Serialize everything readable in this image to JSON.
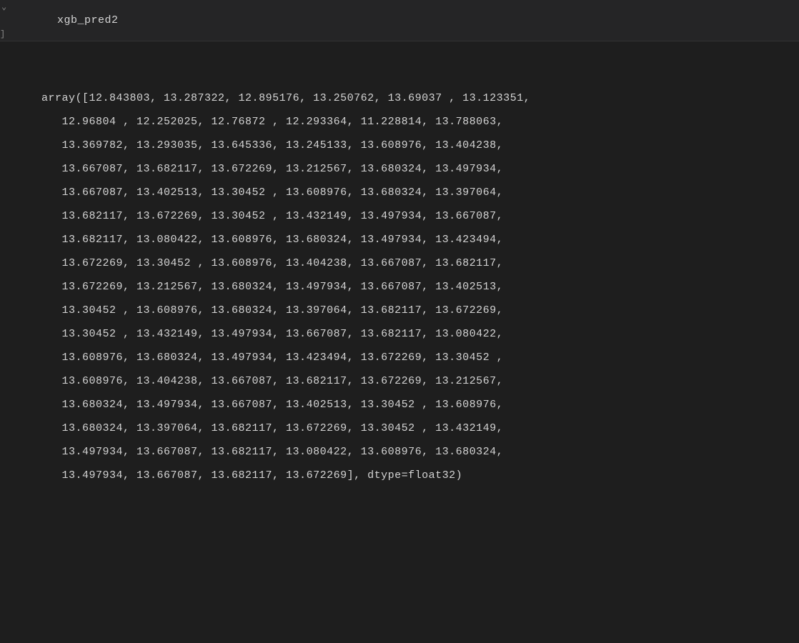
{
  "input_cell": {
    "code": "xgb_pred2"
  },
  "output": {
    "prefix": "array([",
    "suffix": "], dtype=float32)",
    "dtype": "float32",
    "values": [
      [
        "12.843803",
        "13.287322",
        "12.895176",
        "13.250762",
        "13.69037 ",
        "13.123351"
      ],
      [
        "12.96804 ",
        "12.252025",
        "12.76872 ",
        "12.293364",
        "11.228814",
        "13.788063"
      ],
      [
        "13.369782",
        "13.293035",
        "13.645336",
        "13.245133",
        "13.608976",
        "13.404238"
      ],
      [
        "13.667087",
        "13.682117",
        "13.672269",
        "13.212567",
        "13.680324",
        "13.497934"
      ],
      [
        "13.667087",
        "13.402513",
        "13.30452 ",
        "13.608976",
        "13.680324",
        "13.397064"
      ],
      [
        "13.682117",
        "13.672269",
        "13.30452 ",
        "13.432149",
        "13.497934",
        "13.667087"
      ],
      [
        "13.682117",
        "13.080422",
        "13.608976",
        "13.680324",
        "13.497934",
        "13.423494"
      ],
      [
        "13.672269",
        "13.30452 ",
        "13.608976",
        "13.404238",
        "13.667087",
        "13.682117"
      ],
      [
        "13.672269",
        "13.212567",
        "13.680324",
        "13.497934",
        "13.667087",
        "13.402513"
      ],
      [
        "13.30452 ",
        "13.608976",
        "13.680324",
        "13.397064",
        "13.682117",
        "13.672269"
      ],
      [
        "13.30452 ",
        "13.432149",
        "13.497934",
        "13.667087",
        "13.682117",
        "13.080422"
      ],
      [
        "13.608976",
        "13.680324",
        "13.497934",
        "13.423494",
        "13.672269",
        "13.30452 "
      ],
      [
        "13.608976",
        "13.404238",
        "13.667087",
        "13.682117",
        "13.672269",
        "13.212567"
      ],
      [
        "13.680324",
        "13.497934",
        "13.667087",
        "13.402513",
        "13.30452 ",
        "13.608976"
      ],
      [
        "13.680324",
        "13.397064",
        "13.682117",
        "13.672269",
        "13.30452 ",
        "13.432149"
      ],
      [
        "13.497934",
        "13.667087",
        "13.682117",
        "13.080422",
        "13.608976",
        "13.680324"
      ],
      [
        "13.497934",
        "13.667087",
        "13.682117",
        "13.672269"
      ]
    ],
    "indent_first": "       ",
    "indent_rest": "       "
  },
  "colors": {
    "background": "#1e1e1e",
    "input_background": "#252526",
    "text": "#d4d4d4",
    "border": "#333333"
  },
  "typography": {
    "font_family": "Menlo, Monaco, Consolas, Courier New, monospace",
    "font_size": 15,
    "line_height": 2.2,
    "letter_spacing": 0.5
  }
}
